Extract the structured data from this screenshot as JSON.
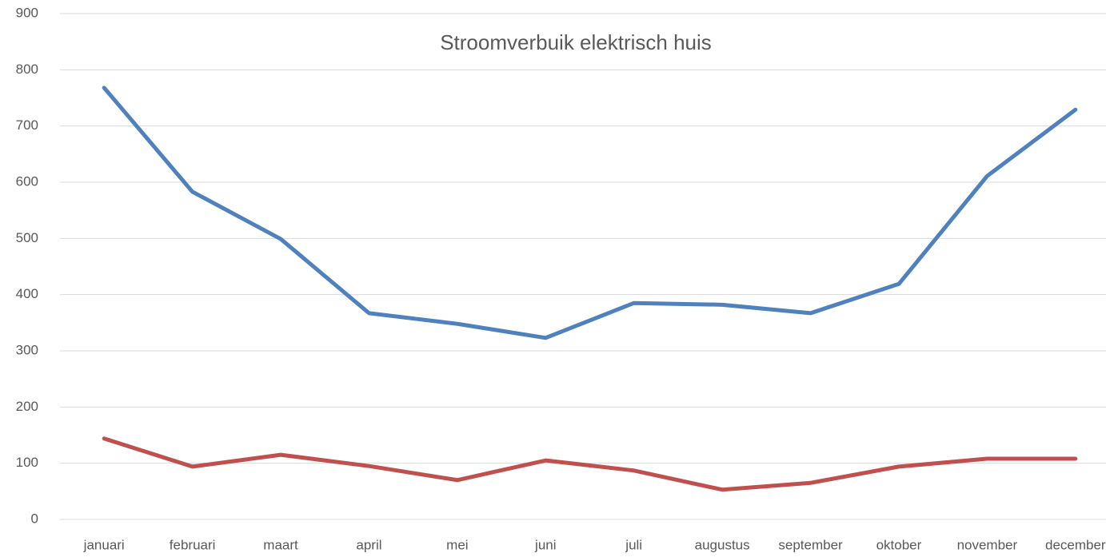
{
  "chart_data": {
    "type": "line",
    "title": "Stroomverbuik elektrisch huis",
    "categories": [
      "januari",
      "februari",
      "maart",
      "april",
      "mei",
      "juni",
      "juli",
      "augustus",
      "september",
      "oktober",
      "november",
      "december"
    ],
    "series": [
      {
        "color": "#4f81bd",
        "values": [
          768,
          583,
          499,
          367,
          348,
          323,
          385,
          382,
          367,
          419,
          611,
          729
        ]
      },
      {
        "color": "#c0504d",
        "values": [
          144,
          94,
          115,
          95,
          70,
          105,
          87,
          53,
          65,
          94,
          108,
          108
        ]
      }
    ],
    "ylim": [
      0,
      900
    ],
    "yticks": [
      0,
      100,
      200,
      300,
      400,
      500,
      600,
      700,
      800,
      900
    ],
    "grid": true
  }
}
